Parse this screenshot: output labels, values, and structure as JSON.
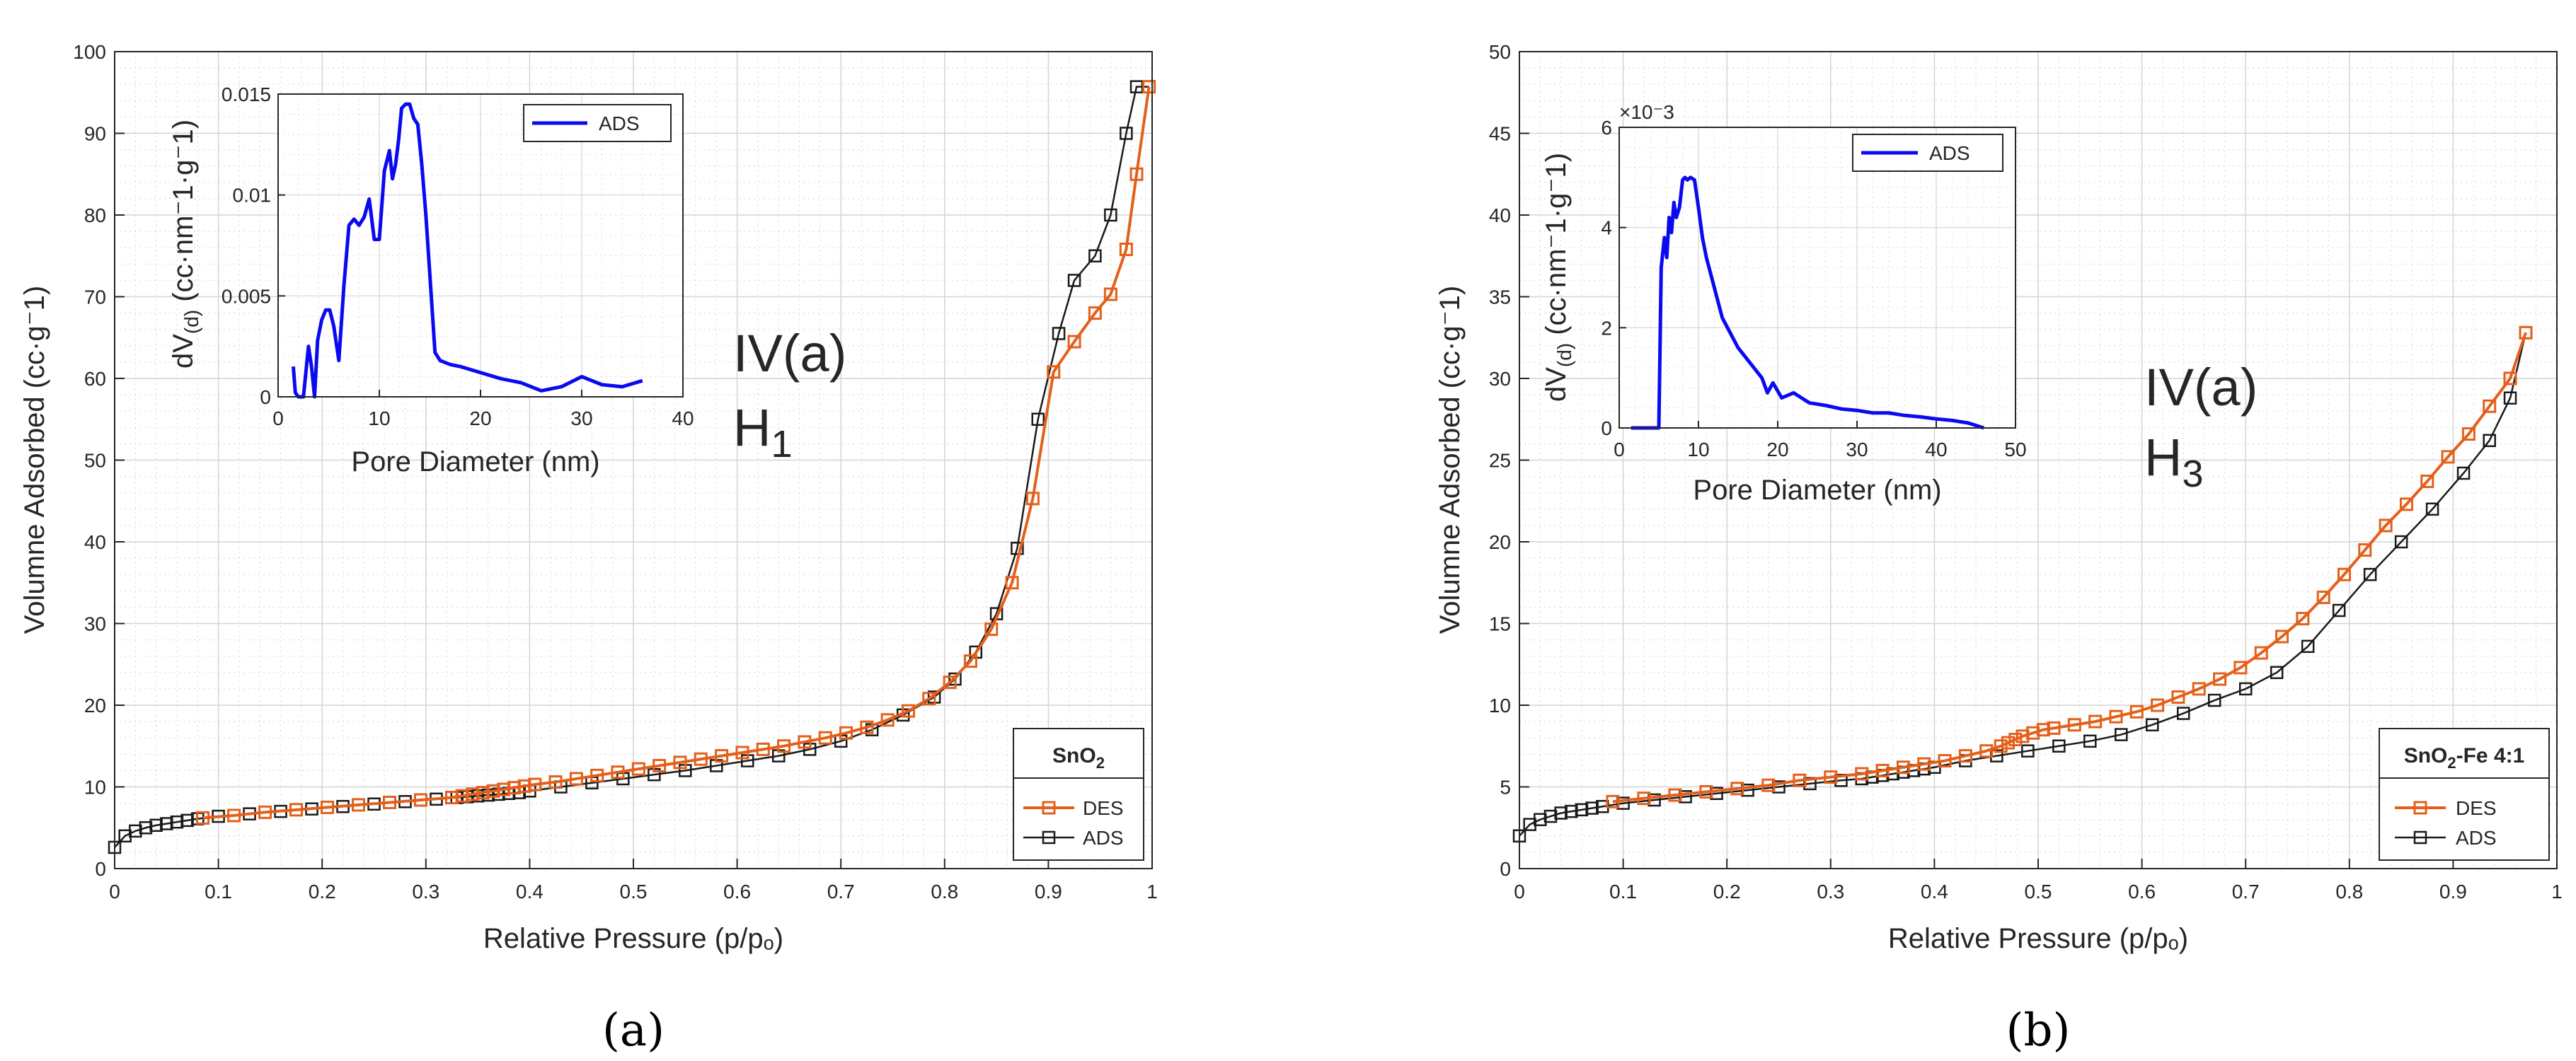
{
  "figure": {
    "colors": {
      "des": "#e4601a",
      "ads": "#1a1a1a",
      "inset_line": "#0a0af0",
      "grid": "#dcdcdc",
      "axes": "#262626"
    }
  },
  "chart_data": [
    {
      "id": "a",
      "type": "line",
      "caption": "(a)",
      "xlabel": "Relative Pressure (p/pₒ)",
      "ylabel": "Volumne Adsorbed (cc·g⁻1)",
      "xlim": [
        0,
        1
      ],
      "ylim": [
        0,
        100
      ],
      "xticks": [
        0,
        0.1,
        0.2,
        0.3,
        0.4,
        0.5,
        0.6,
        0.7,
        0.8,
        0.9,
        1
      ],
      "xtick_labels": [
        "0",
        "0.1",
        "0.2",
        "0.3",
        "0.4",
        "0.5",
        "0.6",
        "0.7",
        "0.8",
        "0.9",
        "1"
      ],
      "yticks": [
        0,
        10,
        20,
        30,
        40,
        50,
        60,
        70,
        80,
        90,
        100
      ],
      "ytick_labels": [
        "0",
        "10",
        "20",
        "30",
        "40",
        "50",
        "60",
        "70",
        "80",
        "90",
        "100"
      ],
      "annotation": {
        "line1": "IV(a)",
        "line2": "H",
        "sub": "1"
      },
      "legend": {
        "title": "SnO",
        "title_sub": "2",
        "entries": [
          "DES",
          "ADS"
        ],
        "location": "bottom-right"
      },
      "series": [
        {
          "name": "DES",
          "x": [
            0.997,
            0.985,
            0.975,
            0.96,
            0.945,
            0.925,
            0.905,
            0.885,
            0.865,
            0.845,
            0.825,
            0.805,
            0.785,
            0.765,
            0.745,
            0.725,
            0.705,
            0.685,
            0.665,
            0.645,
            0.625,
            0.605,
            0.585,
            0.565,
            0.545,
            0.525,
            0.505,
            0.485,
            0.465,
            0.445,
            0.425,
            0.405,
            0.395,
            0.385,
            0.375,
            0.365,
            0.355,
            0.345,
            0.335,
            0.325,
            0.295,
            0.265,
            0.235,
            0.205,
            0.175,
            0.145,
            0.115,
            0.085
          ],
          "y": [
            95.7,
            85.0,
            75.8,
            70.3,
            68.0,
            64.5,
            60.8,
            45.3,
            35.0,
            29.3,
            25.4,
            22.8,
            20.8,
            19.3,
            18.2,
            17.3,
            16.6,
            16.0,
            15.5,
            15.0,
            14.6,
            14.2,
            13.8,
            13.4,
            13.0,
            12.6,
            12.2,
            11.8,
            11.4,
            11.0,
            10.6,
            10.3,
            10.1,
            9.9,
            9.7,
            9.5,
            9.3,
            9.1,
            8.9,
            8.7,
            8.4,
            8.1,
            7.8,
            7.5,
            7.2,
            6.9,
            6.5,
            6.2
          ]
        },
        {
          "name": "ADS",
          "x": [
            0.0,
            0.01,
            0.02,
            0.03,
            0.04,
            0.05,
            0.06,
            0.07,
            0.08,
            0.1,
            0.13,
            0.16,
            0.19,
            0.22,
            0.25,
            0.28,
            0.31,
            0.33,
            0.34,
            0.35,
            0.36,
            0.37,
            0.38,
            0.39,
            0.4,
            0.43,
            0.46,
            0.49,
            0.52,
            0.55,
            0.58,
            0.61,
            0.64,
            0.67,
            0.7,
            0.73,
            0.76,
            0.79,
            0.81,
            0.83,
            0.85,
            0.87,
            0.89,
            0.91,
            0.925,
            0.945,
            0.96,
            0.975,
            0.985,
            0.997
          ],
          "y": [
            2.6,
            4.0,
            4.6,
            5.0,
            5.3,
            5.5,
            5.7,
            5.9,
            6.1,
            6.4,
            6.7,
            7.0,
            7.3,
            7.6,
            7.9,
            8.2,
            8.5,
            8.7,
            8.8,
            8.9,
            9.0,
            9.1,
            9.2,
            9.3,
            9.5,
            10.0,
            10.5,
            11.0,
            11.5,
            12.0,
            12.6,
            13.2,
            13.8,
            14.6,
            15.6,
            17.0,
            18.8,
            21.0,
            23.2,
            26.5,
            31.2,
            39.2,
            55.0,
            65.5,
            72.0,
            75.0,
            80.0,
            90.0,
            95.7,
            95.7
          ]
        }
      ],
      "inset": {
        "type": "line",
        "xlabel": "Pore Diameter (nm)",
        "ylabel_main": "dV",
        "ylabel_sub": "(d)",
        "ylabel_rest": " (cc·nm⁻1·g⁻1)",
        "xlim": [
          0,
          40
        ],
        "ylim": [
          0,
          0.015
        ],
        "xticks": [
          0,
          10,
          20,
          30,
          40
        ],
        "xtick_labels": [
          "0",
          "10",
          "20",
          "30",
          "40"
        ],
        "yticks": [
          0,
          0.005,
          0.01,
          0.015
        ],
        "ytick_labels": [
          "0",
          "0.005",
          "0.01",
          "0.015"
        ],
        "exponent": "",
        "legend": {
          "entries": [
            "ADS"
          ],
          "location": "top-right"
        },
        "series": [
          {
            "name": "ADS",
            "x": [
              1.5,
              1.7,
              2.0,
              2.5,
              3.0,
              3.3,
              3.6,
              3.9,
              4.3,
              4.7,
              5.1,
              5.5,
              6.0,
              6.5,
              7.0,
              7.5,
              8.0,
              8.5,
              9.0,
              9.5,
              10.0,
              10.5,
              11.0,
              11.3,
              11.6,
              11.9,
              12.2,
              12.6,
              13.0,
              13.4,
              13.8,
              14.2,
              14.6,
              15.0,
              15.5,
              16.0,
              17.0,
              18.0,
              20.0,
              22.0,
              24.0,
              26.0,
              28.0,
              30.0,
              32.0,
              34.0,
              36.0
            ],
            "y": [
              0.0015,
              0.0002,
              0.0,
              0.0,
              0.0025,
              0.0015,
              0.0,
              0.0028,
              0.0038,
              0.0043,
              0.0043,
              0.0035,
              0.0018,
              0.0055,
              0.0085,
              0.0088,
              0.0085,
              0.0089,
              0.0098,
              0.0078,
              0.0078,
              0.0112,
              0.0122,
              0.0108,
              0.0115,
              0.0127,
              0.0143,
              0.0145,
              0.0145,
              0.0138,
              0.0135,
              0.0115,
              0.009,
              0.006,
              0.0022,
              0.0018,
              0.0016,
              0.0015,
              0.0012,
              0.0009,
              0.0007,
              0.0003,
              0.0005,
              0.001,
              0.0006,
              0.0005,
              0.0008
            ]
          }
        ]
      }
    },
    {
      "id": "b",
      "type": "line",
      "caption": "(b)",
      "xlabel": "Relative Pressure (p/pₒ)",
      "ylabel": "Volumne Adsorbed (cc·g⁻1)",
      "xlim": [
        0,
        1
      ],
      "ylim": [
        0,
        50
      ],
      "xticks": [
        0,
        0.1,
        0.2,
        0.3,
        0.4,
        0.5,
        0.6,
        0.7,
        0.8,
        0.9,
        1
      ],
      "xtick_labels": [
        "0",
        "0.1",
        "0.2",
        "0.3",
        "0.4",
        "0.5",
        "0.6",
        "0.7",
        "0.8",
        "0.9",
        "1"
      ],
      "yticks": [
        0,
        5,
        10,
        15,
        20,
        25,
        30,
        35,
        40,
        45,
        50
      ],
      "ytick_labels": [
        "0",
        "5",
        "10",
        "15",
        "20",
        "25",
        "30",
        "35",
        "40",
        "45",
        "50"
      ],
      "annotation": {
        "line1": "IV(a)",
        "line2": "H",
        "sub": "3"
      },
      "legend": {
        "title": "SnO",
        "title_sub": "2",
        "title_rest": "-Fe 4:1",
        "entries": [
          "DES",
          "ADS"
        ],
        "location": "bottom-right"
      },
      "series": [
        {
          "name": "DES",
          "x": [
            0.97,
            0.955,
            0.935,
            0.915,
            0.895,
            0.875,
            0.855,
            0.835,
            0.815,
            0.795,
            0.775,
            0.755,
            0.735,
            0.715,
            0.695,
            0.675,
            0.655,
            0.635,
            0.615,
            0.595,
            0.575,
            0.555,
            0.535,
            0.515,
            0.505,
            0.495,
            0.485,
            0.478,
            0.471,
            0.464,
            0.45,
            0.43,
            0.41,
            0.39,
            0.37,
            0.35,
            0.33,
            0.3,
            0.27,
            0.24,
            0.21,
            0.18,
            0.15,
            0.12,
            0.09
          ],
          "y": [
            32.8,
            30.0,
            28.3,
            26.6,
            25.2,
            23.7,
            22.3,
            21.0,
            19.5,
            18.0,
            16.6,
            15.3,
            14.2,
            13.2,
            12.3,
            11.6,
            11.0,
            10.5,
            10.0,
            9.6,
            9.3,
            9.0,
            8.8,
            8.6,
            8.5,
            8.3,
            8.1,
            7.9,
            7.7,
            7.5,
            7.2,
            6.9,
            6.6,
            6.4,
            6.2,
            6.0,
            5.8,
            5.6,
            5.4,
            5.1,
            4.9,
            4.7,
            4.5,
            4.3,
            4.1
          ]
        },
        {
          "name": "ADS",
          "x": [
            0.0,
            0.01,
            0.02,
            0.03,
            0.04,
            0.05,
            0.06,
            0.07,
            0.08,
            0.1,
            0.13,
            0.16,
            0.19,
            0.22,
            0.25,
            0.28,
            0.31,
            0.33,
            0.34,
            0.35,
            0.36,
            0.37,
            0.38,
            0.39,
            0.4,
            0.43,
            0.46,
            0.49,
            0.52,
            0.55,
            0.58,
            0.61,
            0.64,
            0.67,
            0.7,
            0.73,
            0.76,
            0.79,
            0.82,
            0.85,
            0.88,
            0.91,
            0.935,
            0.955,
            0.97
          ],
          "y": [
            2.0,
            2.7,
            3.0,
            3.2,
            3.4,
            3.5,
            3.6,
            3.7,
            3.8,
            4.0,
            4.2,
            4.4,
            4.6,
            4.8,
            5.0,
            5.2,
            5.4,
            5.5,
            5.6,
            5.7,
            5.8,
            5.9,
            6.0,
            6.1,
            6.2,
            6.6,
            6.9,
            7.2,
            7.5,
            7.8,
            8.2,
            8.8,
            9.5,
            10.3,
            11.0,
            12.0,
            13.6,
            15.8,
            18.0,
            20.0,
            22.0,
            24.2,
            26.2,
            28.8,
            32.8
          ]
        }
      ],
      "inset": {
        "type": "line",
        "xlabel": "Pore Diameter (nm)",
        "ylabel_main": "dV",
        "ylabel_sub": "(d)",
        "ylabel_rest": " (cc·nm⁻1·g⁻1)",
        "xlim": [
          0,
          50
        ],
        "ylim": [
          0,
          6
        ],
        "xticks": [
          0,
          10,
          20,
          30,
          40,
          50
        ],
        "xtick_labels": [
          "0",
          "10",
          "20",
          "30",
          "40",
          "50"
        ],
        "yticks": [
          0,
          2,
          4,
          6
        ],
        "ytick_labels": [
          "0",
          "2",
          "4",
          "6"
        ],
        "exponent": "×10⁻3",
        "legend": {
          "entries": [
            "ADS"
          ],
          "location": "top-right"
        },
        "series": [
          {
            "name": "ADS",
            "x": [
              1.5,
              3.0,
              4.5,
              5.0,
              5.3,
              5.7,
              6.0,
              6.3,
              6.6,
              6.9,
              7.2,
              7.6,
              8.0,
              8.3,
              8.6,
              9.0,
              9.5,
              10.0,
              10.5,
              11.0,
              12.0,
              13.0,
              14.0,
              15.0,
              16.0,
              17.0,
              18.0,
              18.7,
              19.4,
              20.5,
              22.0,
              24.0,
              26.0,
              28.0,
              30.0,
              32.0,
              34.0,
              36.0,
              38.0,
              40.0,
              42.0,
              44.0,
              46.0
            ],
            "y": [
              0.0,
              0.0,
              0.0,
              0.0,
              3.2,
              3.8,
              3.4,
              4.2,
              3.9,
              4.5,
              4.2,
              4.4,
              4.95,
              5.0,
              4.95,
              5.0,
              4.95,
              4.4,
              3.8,
              3.4,
              2.8,
              2.2,
              1.9,
              1.6,
              1.4,
              1.2,
              1.0,
              0.7,
              0.9,
              0.6,
              0.7,
              0.5,
              0.45,
              0.38,
              0.35,
              0.3,
              0.3,
              0.25,
              0.22,
              0.18,
              0.15,
              0.1,
              0.0
            ]
          }
        ]
      }
    }
  ]
}
